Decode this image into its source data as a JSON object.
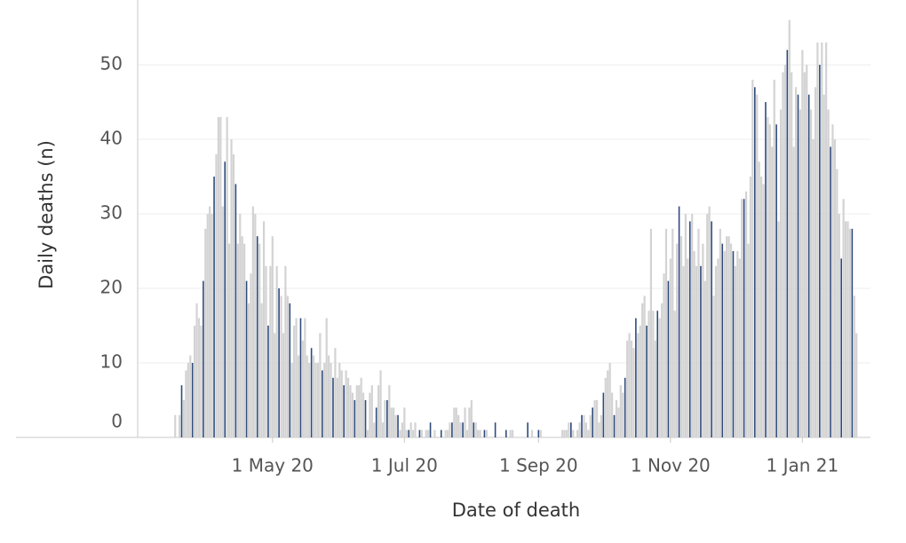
{
  "chart_data": {
    "type": "bar",
    "y_label": "Daily deaths (n)",
    "x_label": "Date of death",
    "ylim": [
      0,
      58.7
    ],
    "yticks": [
      0,
      10,
      20,
      30,
      40,
      50
    ],
    "grid": true,
    "categories": [
      null,
      null,
      null,
      null,
      null,
      null,
      null,
      null,
      null,
      null,
      null,
      null,
      null,
      null,
      null,
      null,
      null,
      null,
      null,
      null,
      null,
      null,
      null,
      null,
      null,
      null,
      null,
      null,
      null,
      null,
      null,
      null,
      null,
      null,
      null,
      null,
      null,
      null,
      null,
      null,
      null,
      null,
      null,
      null,
      null,
      "1 May 20",
      null,
      null,
      null,
      null,
      null,
      null,
      null,
      null,
      null,
      null,
      null,
      null,
      null,
      null,
      null,
      null,
      null,
      null,
      null,
      null,
      null,
      null,
      null,
      null,
      null,
      null,
      null,
      null,
      null,
      null,
      null,
      null,
      null,
      null,
      null,
      null,
      null,
      null,
      null,
      null,
      null,
      null,
      null,
      null,
      null,
      null,
      null,
      null,
      null,
      null,
      null,
      null,
      null,
      null,
      null,
      null,
      null,
      null,
      null,
      null,
      "1 Jul 20",
      null,
      null,
      null,
      null,
      null,
      null,
      null,
      null,
      null,
      null,
      null,
      null,
      null,
      null,
      null,
      null,
      null,
      null,
      null,
      null,
      null,
      null,
      null,
      null,
      null,
      null,
      null,
      null,
      null,
      null,
      null,
      null,
      null,
      null,
      null,
      null,
      null,
      null,
      null,
      null,
      null,
      null,
      null,
      null,
      null,
      null,
      null,
      null,
      null,
      null,
      null,
      null,
      null,
      null,
      null,
      null,
      null,
      null,
      null,
      null,
      null,
      "1 Sep 20",
      null,
      null,
      null,
      null,
      null,
      null,
      null,
      null,
      null,
      null,
      null,
      null,
      null,
      null,
      null,
      null,
      null,
      null,
      null,
      null,
      null,
      null,
      null,
      null,
      null,
      null,
      null,
      null,
      null,
      null,
      null,
      null,
      null,
      null,
      null,
      null,
      null,
      null,
      null,
      null,
      null,
      null,
      null,
      null,
      null,
      null,
      null,
      null,
      null,
      null,
      null,
      null,
      null,
      null,
      null,
      null,
      null,
      null,
      null,
      null,
      "1 Nov 20",
      null,
      null,
      null,
      null,
      null,
      null,
      null,
      null,
      null,
      null,
      null,
      null,
      null,
      null,
      null,
      null,
      null,
      null,
      null,
      null,
      null,
      null,
      null,
      null,
      null,
      null,
      null,
      null,
      null,
      null,
      null,
      null,
      null,
      null,
      null,
      null,
      null,
      null,
      null,
      null,
      null,
      null,
      null,
      null,
      null,
      null,
      null,
      null,
      null,
      null,
      null,
      null,
      null,
      null,
      null,
      null,
      null,
      null,
      null,
      null,
      "1 Jan 21",
      null,
      null,
      null,
      null,
      null,
      null,
      null,
      null,
      null,
      null,
      null,
      null,
      null,
      null,
      null,
      null,
      null,
      null,
      null,
      null,
      null,
      null,
      null,
      null,
      null
    ],
    "values": [
      3,
      0,
      3,
      7,
      5,
      9,
      10,
      11,
      10,
      15,
      18,
      16,
      15,
      21,
      28,
      30,
      31,
      30,
      35,
      38,
      43,
      43,
      31,
      37,
      43,
      26,
      40,
      38,
      34,
      26,
      30,
      27,
      26,
      21,
      18,
      22,
      31,
      30,
      27,
      26,
      18,
      29,
      23,
      15,
      23,
      27,
      14,
      23,
      20,
      19,
      14,
      23,
      19,
      18,
      10,
      15,
      16,
      11,
      16,
      13,
      16,
      11,
      10,
      12,
      11,
      10,
      10,
      14,
      9,
      10,
      16,
      11,
      10,
      8,
      12,
      8,
      10,
      9,
      7,
      9,
      8,
      7,
      6,
      5,
      7,
      7,
      8,
      6,
      5,
      1,
      6,
      7,
      2,
      4,
      7,
      9,
      2,
      5,
      5,
      7,
      4,
      4,
      3,
      3,
      1,
      2,
      4,
      1,
      1,
      2,
      1,
      2,
      0,
      1,
      1,
      0,
      1,
      1,
      2,
      0,
      1,
      0,
      0,
      1,
      0,
      1,
      1,
      2,
      2,
      4,
      4,
      3,
      2,
      2,
      4,
      1,
      4,
      5,
      2,
      2,
      1,
      1,
      0,
      1,
      1,
      0,
      0,
      0,
      2,
      0,
      0,
      0,
      0,
      1,
      0,
      1,
      1,
      0,
      0,
      0,
      0,
      0,
      0,
      2,
      0,
      1,
      0,
      0,
      1,
      1,
      0,
      0,
      0,
      0,
      0,
      0,
      0,
      0,
      0,
      1,
      1,
      1,
      2,
      2,
      1,
      0,
      1,
      2,
      3,
      3,
      2,
      1,
      3,
      4,
      5,
      5,
      2,
      3,
      6,
      8,
      9,
      10,
      6,
      3,
      5,
      4,
      7,
      6,
      8,
      13,
      14,
      13,
      12,
      16,
      14,
      15,
      18,
      19,
      15,
      17,
      28,
      17,
      13,
      17,
      16,
      18,
      22,
      28,
      21,
      24,
      28,
      17,
      26,
      31,
      27,
      23,
      30,
      24,
      29,
      30,
      25,
      23,
      28,
      23,
      26,
      21,
      30,
      31,
      29,
      19,
      23,
      24,
      28,
      26,
      25,
      27,
      27,
      26,
      25,
      23,
      25,
      24,
      32,
      32,
      33,
      26,
      35,
      48,
      47,
      46,
      37,
      35,
      34,
      45,
      43,
      42,
      39,
      48,
      42,
      29,
      44,
      49,
      50,
      52,
      56,
      49,
      39,
      47,
      46,
      44,
      52,
      49,
      50,
      46,
      44,
      40,
      47,
      53,
      50,
      53,
      46,
      53,
      44,
      39,
      42,
      40,
      36,
      30,
      24,
      32,
      29,
      29,
      28,
      28,
      19,
      14
    ],
    "colors": [
      "#d3d3d3",
      "#d3d3d3",
      "#d3d3d3",
      "#2f4b7c",
      "#d3d3d3",
      "#d3d3d3",
      "#d3d3d3",
      "#d3d3d3",
      "#2f4b7c",
      "#d3d3d3",
      "#d3d3d3",
      "#d3d3d3",
      "#d3d3d3",
      "#2f4b7c",
      "#d3d3d3",
      "#d3d3d3",
      "#d3d3d3",
      "#d3d3d3",
      "#2f4b7c",
      "#d3d3d3",
      "#d3d3d3",
      "#d3d3d3",
      "#d3d3d3",
      "#2f4b7c",
      "#d3d3d3",
      "#d3d3d3",
      "#d3d3d3",
      "#d3d3d3",
      "#2f4b7c",
      "#d3d3d3",
      "#d3d3d3",
      "#d3d3d3",
      "#d3d3d3",
      "#2f4b7c",
      "#d3d3d3",
      "#d3d3d3",
      "#d3d3d3",
      "#d3d3d3",
      "#2f4b7c",
      "#d3d3d3",
      "#d3d3d3",
      "#d3d3d3",
      "#d3d3d3",
      "#2f4b7c",
      "#d3d3d3",
      "#d3d3d3",
      "#d3d3d3",
      "#d3d3d3",
      "#2f4b7c",
      "#d3d3d3",
      "#d3d3d3",
      "#d3d3d3",
      "#d3d3d3",
      "#2f4b7c",
      "#d3d3d3",
      "#d3d3d3",
      "#d3d3d3",
      "#d3d3d3",
      "#2f4b7c",
      "#d3d3d3",
      "#d3d3d3",
      "#d3d3d3",
      "#d3d3d3",
      "#2f4b7c",
      "#d3d3d3",
      "#d3d3d3",
      "#d3d3d3",
      "#d3d3d3",
      "#2f4b7c",
      "#d3d3d3",
      "#d3d3d3",
      "#d3d3d3",
      "#d3d3d3",
      "#2f4b7c",
      "#d3d3d3",
      "#d3d3d3",
      "#d3d3d3",
      "#d3d3d3",
      "#2f4b7c",
      "#d3d3d3",
      "#d3d3d3",
      "#d3d3d3",
      "#d3d3d3",
      "#2f4b7c",
      "#d3d3d3",
      "#d3d3d3",
      "#d3d3d3",
      "#d3d3d3",
      "#2f4b7c",
      "#d3d3d3",
      "#d3d3d3",
      "#d3d3d3",
      "#d3d3d3",
      "#2f4b7c",
      "#d3d3d3",
      "#d3d3d3",
      "#d3d3d3",
      "#d3d3d3",
      "#2f4b7c",
      "#d3d3d3",
      "#d3d3d3",
      "#d3d3d3",
      "#d3d3d3",
      "#2f4b7c",
      "#d3d3d3",
      "#d3d3d3",
      "#d3d3d3",
      "#d3d3d3",
      "#2f4b7c",
      "#d3d3d3",
      "#d3d3d3",
      "#d3d3d3",
      "#d3d3d3",
      "#2f4b7c",
      "#d3d3d3",
      "#d3d3d3",
      "#d3d3d3",
      "#d3d3d3",
      "#2f4b7c",
      "#d3d3d3",
      "#d3d3d3",
      "#d3d3d3",
      "#d3d3d3",
      "#2f4b7c",
      "#d3d3d3",
      "#d3d3d3",
      "#d3d3d3",
      "#d3d3d3",
      "#2f4b7c",
      "#d3d3d3",
      "#d3d3d3",
      "#d3d3d3",
      "#d3d3d3",
      "#2f4b7c",
      "#d3d3d3",
      "#d3d3d3",
      "#d3d3d3",
      "#d3d3d3",
      "#2f4b7c",
      "#d3d3d3",
      "#d3d3d3",
      "#d3d3d3",
      "#d3d3d3",
      "#2f4b7c",
      "#d3d3d3",
      "#d3d3d3",
      "#d3d3d3",
      "#d3d3d3",
      "#2f4b7c",
      "#d3d3d3",
      "#d3d3d3",
      "#d3d3d3",
      "#d3d3d3",
      "#2f4b7c",
      "#d3d3d3",
      "#d3d3d3",
      "#d3d3d3",
      "#d3d3d3",
      "#2f4b7c",
      "#d3d3d3",
      "#d3d3d3",
      "#d3d3d3",
      "#d3d3d3",
      "#2f4b7c",
      "#d3d3d3",
      "#d3d3d3",
      "#d3d3d3",
      "#d3d3d3",
      "#2f4b7c",
      "#d3d3d3",
      "#d3d3d3",
      "#d3d3d3",
      "#d3d3d3",
      "#2f4b7c",
      "#d3d3d3",
      "#d3d3d3",
      "#d3d3d3",
      "#d3d3d3",
      "#2f4b7c",
      "#d3d3d3",
      "#d3d3d3",
      "#d3d3d3",
      "#d3d3d3",
      "#2f4b7c",
      "#d3d3d3",
      "#d3d3d3",
      "#d3d3d3",
      "#d3d3d3",
      "#2f4b7c",
      "#d3d3d3",
      "#d3d3d3",
      "#d3d3d3",
      "#d3d3d3",
      "#2f4b7c",
      "#d3d3d3",
      "#d3d3d3",
      "#d3d3d3",
      "#d3d3d3",
      "#2f4b7c",
      "#d3d3d3",
      "#d3d3d3",
      "#d3d3d3",
      "#d3d3d3",
      "#2f4b7c",
      "#d3d3d3",
      "#d3d3d3",
      "#d3d3d3",
      "#d3d3d3",
      "#2f4b7c",
      "#d3d3d3",
      "#d3d3d3",
      "#d3d3d3",
      "#d3d3d3",
      "#2f4b7c",
      "#d3d3d3",
      "#d3d3d3",
      "#d3d3d3",
      "#d3d3d3",
      "#2f4b7c",
      "#d3d3d3",
      "#d3d3d3",
      "#d3d3d3",
      "#d3d3d3",
      "#2f4b7c",
      "#d3d3d3",
      "#d3d3d3",
      "#d3d3d3",
      "#d3d3d3",
      "#2f4b7c",
      "#d3d3d3",
      "#d3d3d3",
      "#d3d3d3",
      "#d3d3d3",
      "#2f4b7c",
      "#d3d3d3",
      "#d3d3d3",
      "#d3d3d3",
      "#d3d3d3",
      "#2f4b7c",
      "#d3d3d3",
      "#d3d3d3",
      "#d3d3d3",
      "#d3d3d3",
      "#2f4b7c",
      "#d3d3d3",
      "#d3d3d3",
      "#d3d3d3",
      "#d3d3d3",
      "#2f4b7c",
      "#d3d3d3",
      "#d3d3d3",
      "#d3d3d3",
      "#d3d3d3",
      "#2f4b7c",
      "#d3d3d3",
      "#d3d3d3",
      "#d3d3d3",
      "#d3d3d3",
      "#2f4b7c",
      "#d3d3d3",
      "#d3d3d3",
      "#d3d3d3",
      "#d3d3d3",
      "#2f4b7c",
      "#d3d3d3",
      "#d3d3d3",
      "#d3d3d3",
      "#d3d3d3",
      "#2f4b7c",
      "#d3d3d3",
      "#d3d3d3",
      "#d3d3d3",
      "#d3d3d3",
      "#2f4b7c",
      "#d3d3d3",
      "#d3d3d3",
      "#d3d3d3",
      "#d3d3d3",
      "#2f4b7c",
      "#d3d3d3",
      "#d3d3d3",
      "#d3d3d3",
      "#d3d3d3",
      "#2f4b7c",
      "#d3d3d3",
      "#d3d3d3",
      "#d3d3d3",
      "#d3d3d3",
      "#2f4b7c",
      "#d3d3d3",
      "#d3d3d3",
      "#d3d3d3",
      "#d3d3d3",
      "#2f4b7c",
      "#d3d3d3",
      "#d3d3d3",
      "#d3d3d3",
      "#d3d3d3",
      "#2f4b7c",
      "#d3d3d3",
      "#d3d3d3",
      "#d3d3d3",
      "#d3d3d3",
      "#2f4b7c",
      "#d3d3d3",
      "#d3d3d3",
      "#d3d3d3",
      "#d3d3d3",
      "#2f4b7c",
      "#d3d3d3",
      "#d3d3d3",
      "#d3d3d3",
      "#d3d3d3",
      "#2f4b7c",
      "#d3d3d3",
      "#d3d3d3"
    ]
  }
}
